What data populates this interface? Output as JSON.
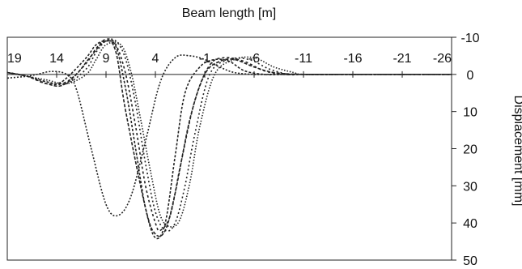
{
  "chart_data": {
    "type": "line",
    "title": "",
    "xlabel": "Beam length [m]",
    "ylabel": "Displacement [mm]",
    "xlim": [
      19,
      -26
    ],
    "ylim": [
      -10,
      50
    ],
    "x_ticks": [
      19,
      14,
      9,
      4,
      -1,
      -6,
      -11,
      -16,
      -21,
      -26
    ],
    "x_tick_labels": [
      "19",
      "14",
      "9",
      "4",
      "-1",
      "-6",
      "-11",
      "-16",
      "-21",
      "-26"
    ],
    "y_ticks": [
      -10,
      0,
      10,
      20,
      30,
      40,
      50
    ],
    "y_tick_labels": [
      "-10",
      "0",
      "10",
      "20",
      "30",
      "40",
      "50"
    ],
    "x_axis_position": "top",
    "y_axis_position": "right",
    "grid": false,
    "legend": "none",
    "line_style": "dotted",
    "line_color": "#222222",
    "series": [
      {
        "x": [
          19,
          17,
          16,
          14.5,
          13,
          12,
          10.5,
          9,
          7.8,
          6.5,
          5,
          3.5,
          2,
          0.5,
          -1,
          -2.5,
          -4,
          -6,
          -8,
          -11,
          -16,
          -21,
          -26
        ],
        "y": [
          1,
          0.5,
          0,
          -0.8,
          0,
          4,
          20,
          35,
          38,
          33,
          18,
          2,
          -4.5,
          -5,
          -4,
          -2,
          -0.5,
          0,
          0,
          0,
          0,
          0,
          0
        ]
      },
      {
        "x": [
          19,
          17,
          15,
          14,
          13,
          11,
          10,
          9,
          8,
          7,
          6,
          5,
          4,
          3,
          2,
          1,
          -0.5,
          -2,
          -3.5,
          -5,
          -7,
          -9,
          -11,
          -16,
          -21,
          -26
        ],
        "y": [
          -0.5,
          0.5,
          2,
          2.5,
          1,
          -4.5,
          -8,
          -9,
          -7.5,
          4,
          20,
          36,
          44,
          40,
          22,
          5,
          -2,
          -4,
          -3.5,
          -1,
          0,
          0,
          0,
          0,
          0,
          0
        ]
      },
      {
        "x": [
          19,
          17,
          15,
          13.5,
          12,
          10.5,
          9,
          8,
          7,
          5,
          4,
          3,
          2,
          0.5,
          -1,
          -2.5,
          -4,
          -6,
          -8,
          -11,
          -16,
          -21,
          -26
        ],
        "y": [
          -0.5,
          0.5,
          2.5,
          3,
          0,
          -5,
          -9,
          -6,
          10,
          36,
          43,
          42,
          32,
          12,
          0,
          -3.5,
          -4,
          -2,
          -0.5,
          0,
          0,
          0,
          0
        ]
      },
      {
        "x": [
          19,
          17,
          15,
          13,
          11,
          10,
          9,
          8,
          7,
          6,
          5,
          4,
          3.5,
          2.5,
          1.5,
          0,
          -1.5,
          -3,
          -5,
          -7,
          -9,
          -11,
          -16,
          -21,
          -26
        ],
        "y": [
          -0.5,
          0.5,
          2.5,
          2,
          -3,
          -7,
          -9.5,
          -8,
          0,
          14,
          30,
          40,
          42,
          38,
          25,
          7,
          -2.5,
          -4.5,
          -3.5,
          -1,
          0,
          0,
          0,
          0,
          0
        ]
      },
      {
        "x": [
          19,
          17,
          15,
          13,
          11,
          10,
          9,
          8,
          7,
          6,
          5,
          4,
          3,
          2,
          1,
          0,
          -1.5,
          -3.5,
          -5.5,
          -7.5,
          -9.5,
          -11,
          -16,
          -21,
          -26
        ],
        "y": [
          -0.5,
          0.5,
          2,
          2.5,
          -1.5,
          -6,
          -9,
          -9,
          -4,
          8,
          24,
          37,
          42,
          40,
          30,
          16,
          0,
          -4,
          -4,
          -1.5,
          0,
          0,
          0,
          0,
          0
        ]
      },
      {
        "x": [
          19,
          17,
          15,
          13,
          11,
          10,
          9,
          7.5,
          6.5,
          5.5,
          4.5,
          3.5,
          2.5,
          1.5,
          0.5,
          -0.5,
          -2,
          -4,
          -6,
          -8,
          -10,
          -11,
          -16,
          -21,
          -26
        ],
        "y": [
          -0.5,
          0.5,
          1.5,
          2.5,
          0,
          -4,
          -8,
          -8,
          -1,
          12,
          26,
          38,
          41,
          39,
          29,
          14,
          0,
          -4,
          -4.5,
          -2,
          -0.5,
          0,
          0,
          0,
          0
        ]
      }
    ]
  }
}
